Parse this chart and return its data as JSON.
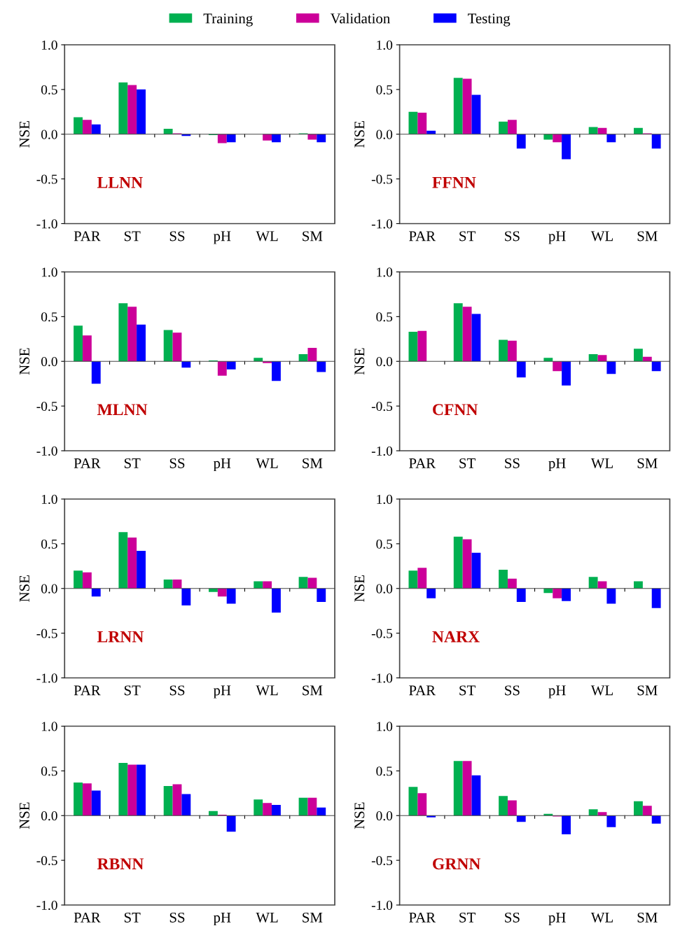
{
  "chart_data": [
    {
      "type": "bar",
      "legend": "top",
      "categories": [
        "PAR",
        "ST",
        "SS",
        "pH",
        "WL",
        "SM"
      ],
      "ylabel": "NSE",
      "annotations": [
        "LLNN"
      ],
      "ylim": [
        -1.0,
        1.0
      ],
      "yticks": [
        {
          "value": -1.0,
          "label": "-1.0"
        },
        {
          "value": -0.5,
          "label": "-0.5"
        },
        {
          "value": 0.0,
          "label": "0.0"
        },
        {
          "value": 0.5,
          "label": "0.5"
        },
        {
          "value": 1.0,
          "label": "1.0"
        }
      ],
      "series": [
        {
          "name": "Training",
          "color": "#00b050",
          "values": [
            0.19,
            0.58,
            0.06,
            -0.01,
            0.0,
            0.01
          ]
        },
        {
          "name": "Validation",
          "color": "#cc0099",
          "values": [
            0.16,
            0.55,
            0.01,
            -0.1,
            -0.07,
            -0.06
          ]
        },
        {
          "name": "Testing",
          "color": "#0000ff",
          "values": [
            0.11,
            0.5,
            -0.02,
            -0.09,
            -0.09,
            -0.09
          ]
        }
      ]
    },
    {
      "type": "bar",
      "categories": [
        "PAR",
        "ST",
        "SS",
        "pH",
        "WL",
        "SM"
      ],
      "ylabel": "NSE",
      "annotations": [
        "FFNN"
      ],
      "ylim": [
        -1.0,
        1.0
      ],
      "yticks": [
        {
          "value": -1.0,
          "label": "-1.0"
        },
        {
          "value": -0.5,
          "label": "-0.5"
        },
        {
          "value": 0.0,
          "label": "0.0"
        },
        {
          "value": 0.5,
          "label": "0.5"
        },
        {
          "value": 1.0,
          "label": "1.0"
        }
      ],
      "series": [
        {
          "color": "#00b050",
          "values": [
            0.25,
            0.63,
            0.14,
            -0.06,
            0.08,
            0.07
          ]
        },
        {
          "color": "#cc0099",
          "values": [
            0.24,
            0.62,
            0.16,
            -0.09,
            0.07,
            0.01
          ]
        },
        {
          "color": "#0000ff",
          "values": [
            0.04,
            0.44,
            -0.16,
            -0.28,
            -0.09,
            -0.16
          ]
        }
      ]
    },
    {
      "type": "bar",
      "categories": [
        "PAR",
        "ST",
        "SS",
        "pH",
        "WL",
        "SM"
      ],
      "ylabel": "NSE",
      "annotations": [
        "MLNN"
      ],
      "ylim": [
        -1.0,
        1.0
      ],
      "yticks": [
        {
          "value": -1.0,
          "label": "-1.0"
        },
        {
          "value": -0.5,
          "label": "-0.5"
        },
        {
          "value": 0.0,
          "label": "0.0"
        },
        {
          "value": 0.5,
          "label": "0.5"
        },
        {
          "value": 1.0,
          "label": "1.0"
        }
      ],
      "series": [
        {
          "color": "#00b050",
          "values": [
            0.4,
            0.65,
            0.35,
            0.01,
            0.04,
            0.08
          ]
        },
        {
          "color": "#cc0099",
          "values": [
            0.29,
            0.61,
            0.32,
            -0.16,
            -0.02,
            0.15
          ]
        },
        {
          "color": "#0000ff",
          "values": [
            -0.25,
            0.41,
            -0.07,
            -0.09,
            -0.22,
            -0.12
          ]
        }
      ]
    },
    {
      "type": "bar",
      "categories": [
        "PAR",
        "ST",
        "SS",
        "pH",
        "WL",
        "SM"
      ],
      "ylabel": "NSE",
      "annotations": [
        "CFNN"
      ],
      "ylim": [
        -1.0,
        1.0
      ],
      "yticks": [
        {
          "value": -1.0,
          "label": "-1.0"
        },
        {
          "value": -0.5,
          "label": "-0.5"
        },
        {
          "value": 0.0,
          "label": "0.0"
        },
        {
          "value": 0.5,
          "label": "0.5"
        },
        {
          "value": 1.0,
          "label": "1.0"
        }
      ],
      "series": [
        {
          "color": "#00b050",
          "values": [
            0.33,
            0.65,
            0.24,
            0.04,
            0.08,
            0.14
          ]
        },
        {
          "color": "#cc0099",
          "values": [
            0.34,
            0.61,
            0.23,
            -0.11,
            0.07,
            0.05
          ]
        },
        {
          "color": "#0000ff",
          "values": [
            0.0,
            0.53,
            -0.18,
            -0.27,
            -0.14,
            -0.11
          ]
        }
      ]
    },
    {
      "type": "bar",
      "categories": [
        "PAR",
        "ST",
        "SS",
        "pH",
        "WL",
        "SM"
      ],
      "ylabel": "NSE",
      "annotations": [
        "LRNN"
      ],
      "ylim": [
        -1.0,
        1.0
      ],
      "yticks": [
        {
          "value": -1.0,
          "label": "-1.0"
        },
        {
          "value": -0.5,
          "label": "-0.5"
        },
        {
          "value": 0.0,
          "label": "0.0"
        },
        {
          "value": 0.5,
          "label": "0.5"
        },
        {
          "value": 1.0,
          "label": "1.0"
        }
      ],
      "series": [
        {
          "color": "#00b050",
          "values": [
            0.2,
            0.63,
            0.1,
            -0.04,
            0.08,
            0.13
          ]
        },
        {
          "color": "#cc0099",
          "values": [
            0.18,
            0.57,
            0.1,
            -0.09,
            0.08,
            0.12
          ]
        },
        {
          "color": "#0000ff",
          "values": [
            -0.09,
            0.42,
            -0.19,
            -0.17,
            -0.27,
            -0.15
          ]
        }
      ]
    },
    {
      "type": "bar",
      "categories": [
        "PAR",
        "ST",
        "SS",
        "pH",
        "WL",
        "SM"
      ],
      "ylabel": "NSE",
      "annotations": [
        "NARX"
      ],
      "ylim": [
        -1.0,
        1.0
      ],
      "yticks": [
        {
          "value": -1.0,
          "label": "-1.0"
        },
        {
          "value": -0.5,
          "label": "-0.5"
        },
        {
          "value": 0.0,
          "label": "0.0"
        },
        {
          "value": 0.5,
          "label": "0.5"
        },
        {
          "value": 1.0,
          "label": "1.0"
        }
      ],
      "series": [
        {
          "color": "#00b050",
          "values": [
            0.2,
            0.58,
            0.21,
            -0.05,
            0.13,
            0.08
          ]
        },
        {
          "color": "#cc0099",
          "values": [
            0.23,
            0.55,
            0.11,
            -0.11,
            0.08,
            0.0
          ]
        },
        {
          "color": "#0000ff",
          "values": [
            -0.11,
            0.4,
            -0.15,
            -0.14,
            -0.17,
            -0.22
          ]
        }
      ]
    },
    {
      "type": "bar",
      "categories": [
        "PAR",
        "ST",
        "SS",
        "pH",
        "WL",
        "SM"
      ],
      "ylabel": "NSE",
      "annotations": [
        "RBNN"
      ],
      "ylim": [
        -1.0,
        1.0
      ],
      "yticks": [
        {
          "value": -1.0,
          "label": "-1.0"
        },
        {
          "value": -0.5,
          "label": "-0.5"
        },
        {
          "value": 0.0,
          "label": "0.0"
        },
        {
          "value": 0.5,
          "label": "0.5"
        },
        {
          "value": 1.0,
          "label": "1.0"
        }
      ],
      "series": [
        {
          "color": "#00b050",
          "values": [
            0.37,
            0.59,
            0.33,
            0.05,
            0.18,
            0.2
          ]
        },
        {
          "color": "#cc0099",
          "values": [
            0.36,
            0.57,
            0.35,
            0.01,
            0.14,
            0.2
          ]
        },
        {
          "color": "#0000ff",
          "values": [
            0.28,
            0.57,
            0.24,
            -0.18,
            0.12,
            0.09
          ]
        }
      ]
    },
    {
      "type": "bar",
      "categories": [
        "PAR",
        "ST",
        "SS",
        "pH",
        "WL",
        "SM"
      ],
      "ylabel": "NSE",
      "annotations": [
        "GRNN"
      ],
      "ylim": [
        -1.0,
        1.0
      ],
      "yticks": [
        {
          "value": -1.0,
          "label": "-1.0"
        },
        {
          "value": -0.5,
          "label": "-0.5"
        },
        {
          "value": 0.0,
          "label": "0.0"
        },
        {
          "value": 0.5,
          "label": "0.5"
        },
        {
          "value": 1.0,
          "label": "1.0"
        }
      ],
      "series": [
        {
          "color": "#00b050",
          "values": [
            0.32,
            0.61,
            0.22,
            0.02,
            0.07,
            0.16
          ]
        },
        {
          "color": "#cc0099",
          "values": [
            0.25,
            0.61,
            0.17,
            -0.01,
            0.04,
            0.11
          ]
        },
        {
          "color": "#0000ff",
          "values": [
            -0.02,
            0.45,
            -0.07,
            -0.21,
            -0.13,
            -0.09
          ]
        }
      ]
    }
  ]
}
